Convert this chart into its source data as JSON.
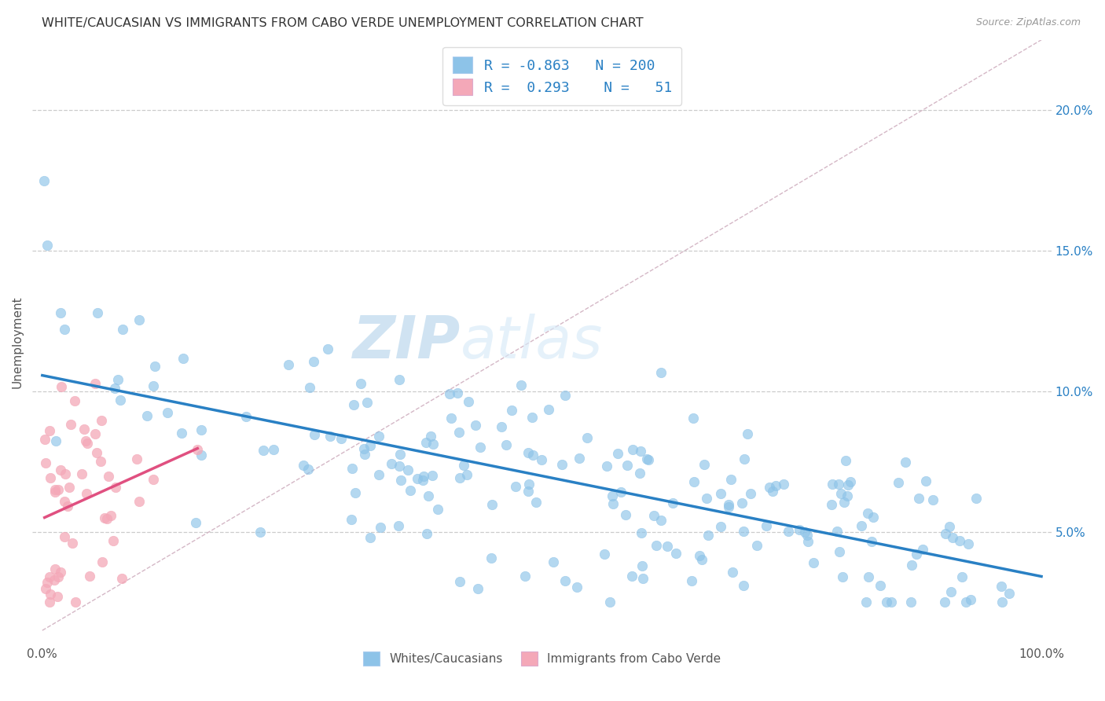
{
  "title": "WHITE/CAUCASIAN VS IMMIGRANTS FROM CABO VERDE UNEMPLOYMENT CORRELATION CHART",
  "source": "Source: ZipAtlas.com",
  "ylabel": "Unemployment",
  "y_ticks": [
    0.05,
    0.1,
    0.15,
    0.2
  ],
  "y_tick_labels": [
    "5.0%",
    "10.0%",
    "15.0%",
    "20.0%"
  ],
  "xlim": [
    -0.01,
    1.01
  ],
  "ylim": [
    0.01,
    0.225
  ],
  "blue_R": -0.863,
  "blue_N": 200,
  "pink_R": 0.293,
  "pink_N": 51,
  "blue_color": "#8dc3e8",
  "pink_color": "#f4a8b8",
  "blue_line_color": "#2980c4",
  "pink_line_color": "#e05080",
  "diagonal_color": "#d0b0c0",
  "watermark_zip": "ZIP",
  "watermark_atlas": "atlas",
  "background_color": "#ffffff",
  "grid_color": "#cccccc",
  "title_fontsize": 11.5,
  "label_fontsize": 11,
  "tick_fontsize": 11,
  "legend_fontsize": 13
}
